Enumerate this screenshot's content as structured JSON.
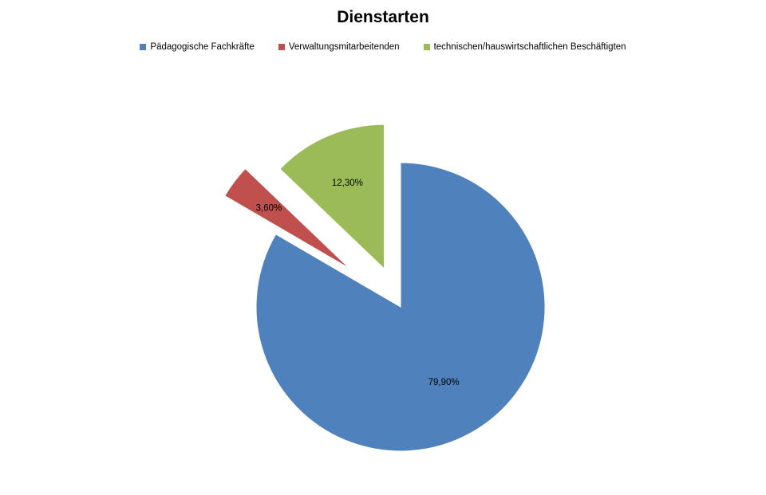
{
  "chart_data": {
    "type": "pie",
    "title": "Dienstarten",
    "legend_position": "top",
    "exploded": true,
    "series": [
      {
        "name": "Pädagogische Fachkräfte",
        "value": 79.9,
        "label": "79,90%",
        "color": "#4f81bd"
      },
      {
        "name": "Verwaltungsmitarbeitenden",
        "value": 3.6,
        "label": "3,60%",
        "color": "#c0504d"
      },
      {
        "name": "technischen/hauswirtschaftlichen Beschäftigten",
        "value": 12.3,
        "label": "12,30%",
        "color": "#9bbb59"
      }
    ]
  }
}
